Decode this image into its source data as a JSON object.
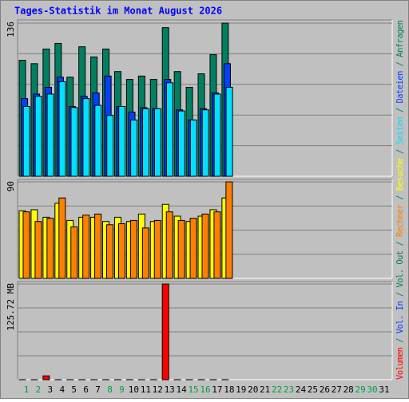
{
  "chart_data": {
    "type": "bar",
    "title": "Tages-Statistik im Monat August 2026",
    "categories": [
      "1",
      "2",
      "3",
      "4",
      "5",
      "6",
      "7",
      "8",
      "9",
      "10",
      "11",
      "12",
      "13",
      "14",
      "15",
      "16",
      "17",
      "18",
      "19",
      "20",
      "21",
      "22",
      "23",
      "24",
      "25",
      "26",
      "27",
      "28",
      "29",
      "30",
      "31"
    ],
    "weekend_indices": [
      0,
      1,
      7,
      8,
      14,
      15,
      21,
      22,
      28,
      29
    ],
    "weekday_color": "#000000",
    "weekend_color": "#00a040",
    "legend_separator": " / ",
    "panels": [
      {
        "ylim": [
          0,
          136
        ],
        "yticks": [
          136
        ],
        "grid_divisions": 5,
        "series": [
          {
            "name": "Anfragen",
            "color": "#008060",
            "values": [
              103,
              100,
              113,
              118,
              88,
              115,
              106,
              113,
              93,
              86,
              89,
              86,
              132,
              93,
              79,
              91,
              108,
              136,
              null,
              null,
              null,
              null,
              null,
              null,
              null,
              null,
              null,
              null,
              null,
              null,
              null
            ]
          },
          {
            "name": "Dateien",
            "color": "#0040ff",
            "values": [
              69,
              73,
              79,
              88,
              62,
              71,
              74,
              89,
              62,
              57,
              61,
              60,
              86,
              59,
              50,
              60,
              74,
              100,
              null,
              null,
              null,
              null,
              null,
              null,
              null,
              null,
              null,
              null,
              null,
              null,
              null
            ]
          },
          {
            "name": "Seiten",
            "color": "#00e0ff",
            "values": [
              62,
              71,
              73,
              84,
              61,
              69,
              63,
              54,
              62,
              50,
              60,
              60,
              83,
              58,
              50,
              59,
              73,
              79,
              null,
              null,
              null,
              null,
              null,
              null,
              null,
              null,
              null,
              null,
              null,
              null,
              null
            ]
          }
        ]
      },
      {
        "ylim": [
          0,
          90
        ],
        "yticks": [
          90
        ],
        "grid_divisions": 4,
        "series": [
          {
            "name": "Besuche",
            "color": "#ffff00",
            "values": [
              63,
              64,
              57,
              70,
              54,
              57,
              57,
              53,
              57,
              53,
              60,
              53,
              69,
              58,
              53,
              58,
              64,
              75,
              null,
              null,
              null,
              null,
              null,
              null,
              null,
              null,
              null,
              null,
              null,
              null,
              null
            ]
          },
          {
            "name": "Rechner",
            "color": "#ff8000",
            "values": [
              62,
              53,
              56,
              75,
              48,
              59,
              60,
              50,
              51,
              54,
              47,
              54,
              62,
              54,
              56,
              60,
              62,
              90,
              null,
              null,
              null,
              null,
              null,
              null,
              null,
              null,
              null,
              null,
              null,
              null,
              null
            ]
          }
        ]
      },
      {
        "ylim": [
          0,
          125.72
        ],
        "yticks": [
          {
            "value": 125.72,
            "label": "125.72 MB"
          }
        ],
        "grid_divisions": 4,
        "series": [
          {
            "name": "Volumen",
            "color": "#ff0000",
            "values": [
              0,
              0,
              5,
              0,
              0,
              0,
              0,
              0,
              0,
              0,
              0,
              0,
              125.72,
              0,
              0,
              0,
              0,
              0,
              null,
              null,
              null,
              null,
              null,
              null,
              null,
              null,
              null,
              null,
              null,
              null,
              null
            ]
          },
          {
            "name": "Vol. In",
            "color": "#0040ff",
            "values": [
              0,
              0,
              0,
              0,
              0,
              0,
              0,
              0,
              0,
              0,
              0,
              0,
              0,
              0,
              0,
              0,
              0,
              0,
              null,
              null,
              null,
              null,
              null,
              null,
              null,
              null,
              null,
              null,
              null,
              null,
              null
            ]
          },
          {
            "name": "Vol. Out",
            "color": "#008060",
            "values": [
              0,
              0,
              0,
              0,
              0,
              0,
              0,
              0,
              0,
              0,
              0,
              0,
              0,
              0,
              0,
              0,
              0,
              0,
              null,
              null,
              null,
              null,
              null,
              null,
              null,
              null,
              null,
              null,
              null,
              null,
              null
            ]
          }
        ]
      }
    ]
  }
}
